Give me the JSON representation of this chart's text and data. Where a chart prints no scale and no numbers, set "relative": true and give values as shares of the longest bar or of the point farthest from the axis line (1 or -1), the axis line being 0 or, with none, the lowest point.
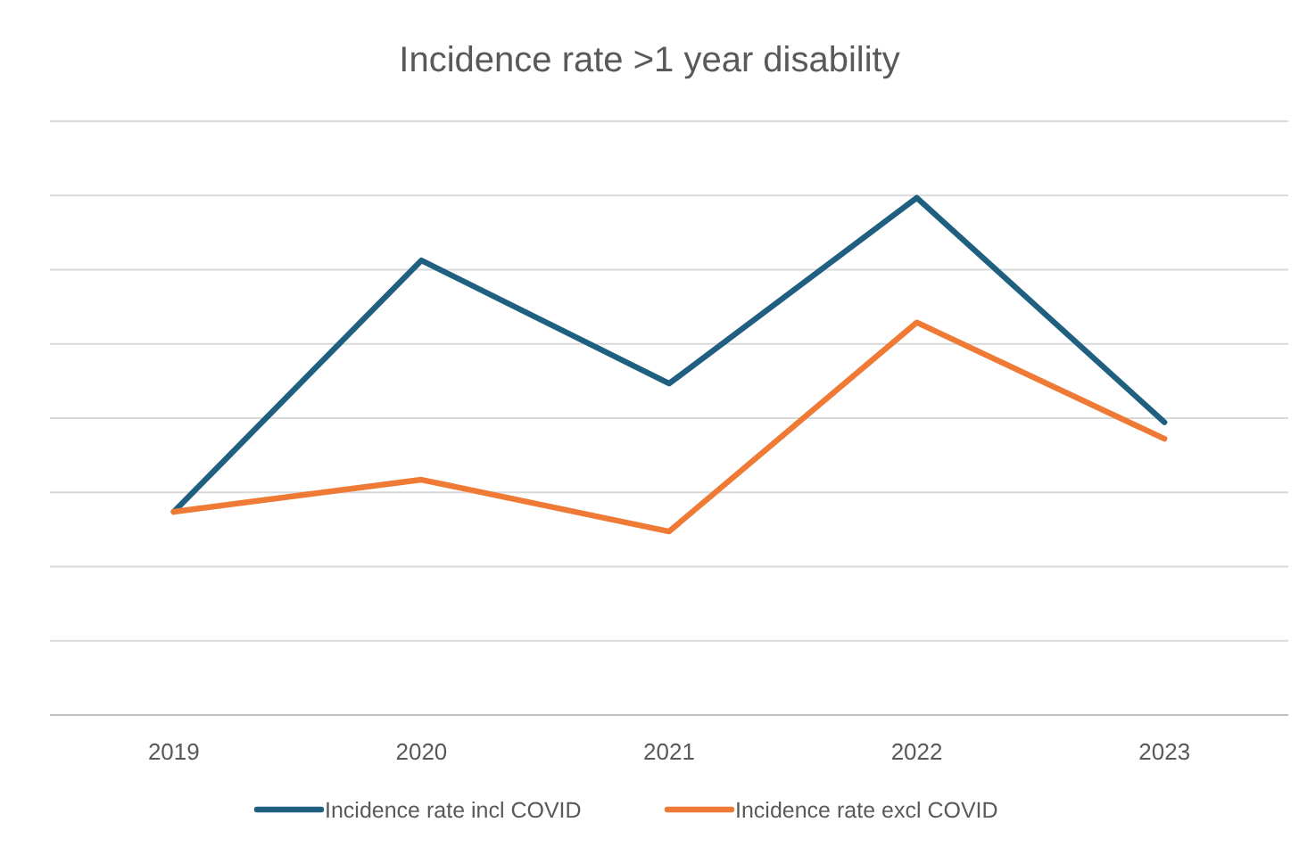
{
  "chart_data": {
    "type": "line",
    "title": "Incidence rate >1 year disability",
    "categories": [
      "2019",
      "2020",
      "2021",
      "2022",
      "2023"
    ],
    "relative": true,
    "grid": "y",
    "legend": "bottom",
    "marker": "none",
    "line_style": "solid",
    "series": [
      {
        "name": "Incidence rate incl COVID",
        "color": "#1f5f7f",
        "values": [
          0.393,
          0.879,
          0.641,
          1,
          0.566
        ]
      },
      {
        "name": "Incidence rate excl COVID",
        "color": "#ef7a35",
        "values": [
          0.393,
          0.455,
          0.355,
          0.759,
          0.534
        ]
      }
    ]
  }
}
